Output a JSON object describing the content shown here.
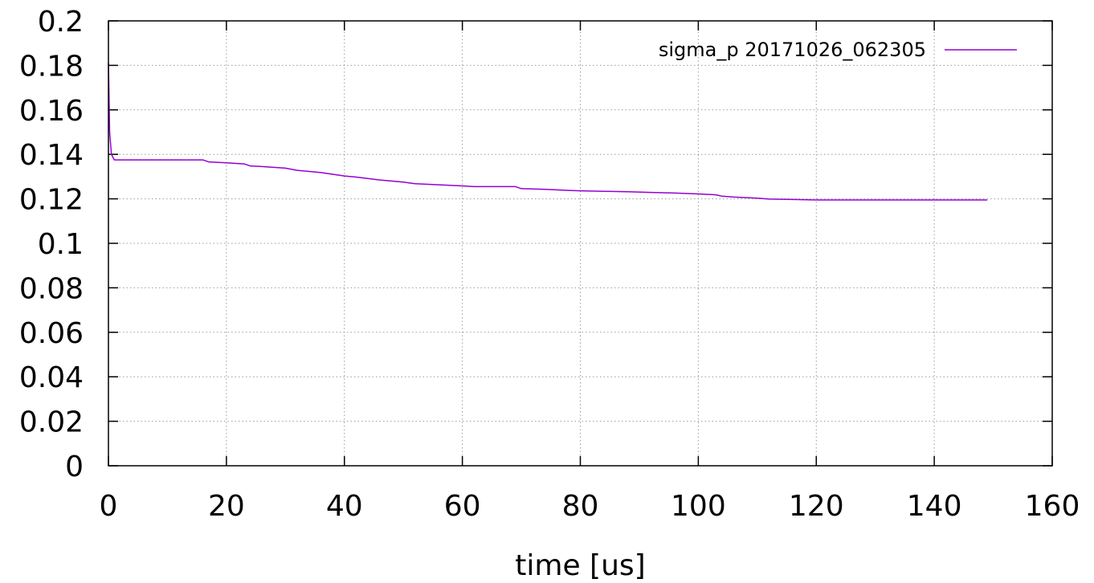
{
  "chart_data": {
    "type": "line",
    "title": "",
    "xlabel": "time [us]",
    "ylabel": "",
    "xlim": [
      0,
      160
    ],
    "ylim": [
      0,
      0.2
    ],
    "x_ticks": [
      0,
      20,
      40,
      60,
      80,
      100,
      120,
      140,
      160
    ],
    "y_ticks": [
      0,
      0.02,
      0.04,
      0.06,
      0.08,
      0.1,
      0.12,
      0.14,
      0.16,
      0.18,
      0.2
    ],
    "x_tick_labels": [
      "0",
      "20",
      "40",
      "60",
      "80",
      "100",
      "120",
      "140",
      "160"
    ],
    "y_tick_labels": [
      "0",
      "0.02",
      "0.04",
      "0.06",
      "0.08",
      "0.1",
      "0.12",
      "0.14",
      "0.16",
      "0.18",
      "0.2"
    ],
    "grid": true,
    "legend_position": "top-right",
    "series": [
      {
        "name": "sigma_p 20171026_062305",
        "color": "#9400d3",
        "x": [
          0,
          0.2,
          0.5,
          1,
          5,
          10,
          16,
          17,
          20,
          23,
          24,
          26,
          30,
          32,
          36,
          40,
          42,
          46,
          50,
          52,
          56,
          60,
          62,
          66,
          69,
          70,
          74,
          78,
          80,
          84,
          88,
          92,
          96,
          100,
          103,
          104,
          106,
          110,
          112,
          116,
          120,
          125,
          130,
          140,
          149
        ],
        "y": [
          0.181,
          0.15,
          0.14,
          0.1375,
          0.1375,
          0.1375,
          0.1375,
          0.1366,
          0.1362,
          0.1357,
          0.1348,
          0.1345,
          0.1338,
          0.1328,
          0.1318,
          0.1303,
          0.1298,
          0.1285,
          0.1275,
          0.1268,
          0.1263,
          0.1258,
          0.1255,
          0.1255,
          0.1255,
          0.1246,
          0.1243,
          0.1238,
          0.1236,
          0.1234,
          0.1232,
          0.1229,
          0.1226,
          0.1222,
          0.1218,
          0.1212,
          0.1208,
          0.1203,
          0.1199,
          0.1197,
          0.1195,
          0.1195,
          0.1195,
          0.1195,
          0.1195
        ]
      }
    ]
  }
}
